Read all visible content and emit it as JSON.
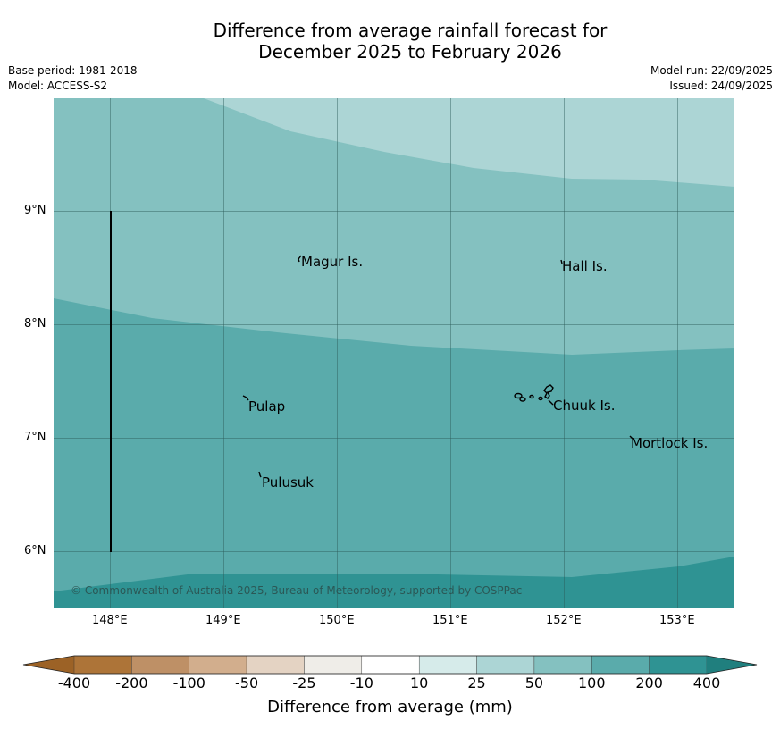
{
  "header": {
    "title_line1": "Difference from average rainfall forecast for",
    "title_line2": "December 2025 to February 2026",
    "base_period": "Base period: 1981-2018",
    "model": "Model: ACCESS-S2",
    "model_run": "Model run: 22/09/2025",
    "issued": "Issued: 24/09/2025"
  },
  "map": {
    "lat_ticks": [
      "9°N",
      "8°N",
      "7°N",
      "6°N"
    ],
    "lon_ticks": [
      "148°E",
      "149°E",
      "150°E",
      "151°E",
      "152°E",
      "153°E"
    ],
    "places": [
      {
        "id": "magur",
        "label": "Magur Is."
      },
      {
        "id": "hall",
        "label": "Hall Is."
      },
      {
        "id": "pulap",
        "label": "Pulap"
      },
      {
        "id": "chuuk",
        "label": "Chuuk Is."
      },
      {
        "id": "mortlock",
        "label": "Mortlock Is."
      },
      {
        "id": "pulusuk",
        "label": "Pulusuk"
      }
    ],
    "credit": "© Commonwealth of Australia 2025, Bureau of Meteorology, supported by COSPPac"
  },
  "colorbar": {
    "labels": [
      "-400",
      "-200",
      "-100",
      "-50",
      "-25",
      "-10",
      "10",
      "25",
      "50",
      "100",
      "200",
      "400"
    ],
    "colors": [
      "#ad7438",
      "#be9066",
      "#d2ae8d",
      "#e4d3c3",
      "#efede8",
      "#ffffff",
      "#d6ebea",
      "#acd5d5",
      "#84c1c0",
      "#5aabab",
      "#2f9393"
    ],
    "under_color": "#9c6226",
    "over_color": "#207f7e",
    "title": "Difference from average (mm)"
  }
}
